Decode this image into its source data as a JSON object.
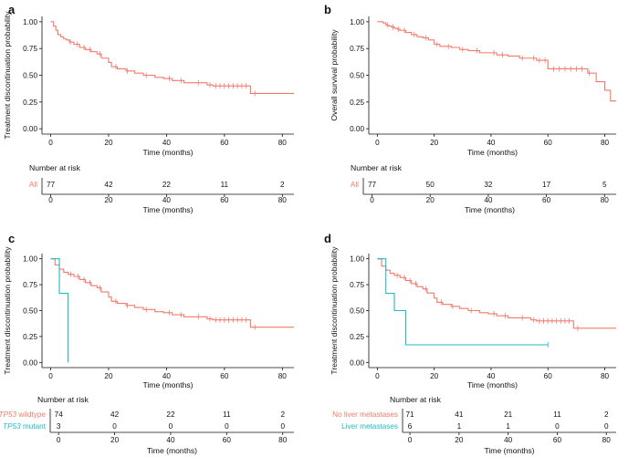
{
  "colors": {
    "primary": "#f07b6c",
    "secondary": "#1fbcc1",
    "axis": "#111111"
  },
  "xlabel": "Time (months)",
  "risk_title": "Number at risk",
  "chart_data": [
    {
      "id": "a",
      "letter": "a",
      "type": "line",
      "step": true,
      "ylabel": "Treatment discontinuation probability",
      "xlabel": "Time (months)",
      "xlim": [
        -3,
        84
      ],
      "ylim": [
        -0.05,
        1.05
      ],
      "xticks": [
        0,
        20,
        40,
        60,
        80
      ],
      "yticks": [
        "0.00",
        "0.25",
        "0.50",
        "0.75",
        "1.00"
      ],
      "grid": false,
      "series": [
        {
          "color": "#f07b6c",
          "x": [
            0,
            1,
            1.8,
            2.5,
            3.5,
            4.5,
            5.5,
            6.5,
            8,
            10,
            12,
            14,
            16,
            17.5,
            20,
            21,
            23,
            26,
            29,
            32,
            36,
            39,
            42,
            46,
            50,
            54,
            56,
            62,
            66,
            69,
            75,
            84
          ],
          "y": [
            1.0,
            0.96,
            0.92,
            0.88,
            0.86,
            0.84,
            0.83,
            0.81,
            0.79,
            0.76,
            0.74,
            0.72,
            0.7,
            0.66,
            0.62,
            0.58,
            0.56,
            0.54,
            0.52,
            0.5,
            0.48,
            0.47,
            0.45,
            0.43,
            0.43,
            0.41,
            0.4,
            0.4,
            0.4,
            0.33,
            0.33,
            0.33
          ],
          "censor_x": [
            6.8,
            9.2,
            11.5,
            13.5,
            17,
            22.5,
            26.5,
            33,
            41,
            45,
            51,
            55,
            57,
            58.5,
            60,
            61.5,
            63,
            64.5,
            66,
            67.5,
            70.5
          ]
        }
      ],
      "risk": {
        "xticks": [
          0,
          20,
          40,
          60,
          80
        ],
        "rows": [
          {
            "label": "All",
            "color": "#f07b6c",
            "values": [
              77,
              42,
              22,
              11,
              2
            ]
          }
        ]
      }
    },
    {
      "id": "b",
      "letter": "b",
      "type": "line",
      "step": true,
      "ylabel": "Overall survival probability",
      "xlabel": "Time (months)",
      "xlim": [
        -3,
        84
      ],
      "ylim": [
        -0.05,
        1.05
      ],
      "xticks": [
        0,
        20,
        40,
        60,
        80
      ],
      "yticks": [
        "0.00",
        "0.25",
        "0.50",
        "0.75",
        "1.00"
      ],
      "grid": false,
      "series": [
        {
          "color": "#f07b6c",
          "x": [
            0,
            2,
            3,
            4,
            5,
            6,
            7,
            8,
            10,
            12,
            14,
            16,
            18,
            20,
            22,
            26,
            29,
            32,
            36,
            42,
            46,
            50,
            56,
            60,
            74,
            77,
            80,
            82,
            84
          ],
          "y": [
            1.0,
            0.99,
            0.97,
            0.96,
            0.95,
            0.94,
            0.93,
            0.92,
            0.9,
            0.88,
            0.86,
            0.85,
            0.83,
            0.79,
            0.77,
            0.76,
            0.74,
            0.73,
            0.71,
            0.69,
            0.68,
            0.66,
            0.64,
            0.56,
            0.52,
            0.44,
            0.36,
            0.26,
            0.26
          ],
          "censor_x": [
            3.5,
            5.5,
            7.5,
            9.5,
            13,
            17,
            21,
            25,
            30,
            35,
            41,
            44,
            51,
            55,
            57,
            59,
            62,
            64,
            66,
            68,
            70,
            72,
            74.5
          ]
        }
      ],
      "risk": {
        "xticks": [
          0,
          20,
          40,
          60,
          80
        ],
        "rows": [
          {
            "label": "All",
            "color": "#f07b6c",
            "values": [
              77,
              50,
              32,
              17,
              5
            ]
          }
        ]
      }
    },
    {
      "id": "c",
      "letter": "c",
      "type": "line",
      "step": true,
      "ylabel": "Treatment discontinuation probability",
      "xlabel": "Time (months)",
      "xlim": [
        -3,
        84
      ],
      "ylim": [
        -0.05,
        1.05
      ],
      "xticks": [
        0,
        20,
        40,
        60,
        80
      ],
      "yticks": [
        "0.00",
        "0.25",
        "0.50",
        "0.75",
        "1.00"
      ],
      "grid": false,
      "series": [
        {
          "color": "#f07b6c",
          "x": [
            0,
            1.5,
            3,
            4.5,
            6,
            8,
            10,
            12,
            14,
            16,
            17.5,
            20,
            21,
            23,
            26,
            29,
            32,
            36,
            39,
            42,
            46,
            50,
            54,
            56,
            62,
            66,
            69,
            75,
            84
          ],
          "y": [
            1.0,
            0.94,
            0.9,
            0.87,
            0.85,
            0.83,
            0.8,
            0.77,
            0.74,
            0.72,
            0.68,
            0.63,
            0.59,
            0.57,
            0.55,
            0.53,
            0.51,
            0.49,
            0.48,
            0.46,
            0.44,
            0.44,
            0.42,
            0.41,
            0.41,
            0.41,
            0.34,
            0.34,
            0.34
          ],
          "censor_x": [
            7,
            9.5,
            11.5,
            13.5,
            17,
            22.5,
            26.5,
            33,
            41,
            45,
            51,
            55,
            57,
            58.5,
            60,
            61.5,
            63,
            64.5,
            66,
            67.5,
            70.5
          ]
        },
        {
          "color": "#1fbcc1",
          "x": [
            0,
            2,
            3,
            6,
            6
          ],
          "y": [
            1.0,
            1.0,
            0.667,
            0.333,
            0.0
          ],
          "censor_x": []
        }
      ],
      "risk": {
        "xticks": [
          0,
          20,
          40,
          60,
          80
        ],
        "rows": [
          {
            "label_italic": "TP53",
            "label": " wildtype",
            "color": "#f07b6c",
            "values": [
              74,
              42,
              22,
              11,
              2
            ]
          },
          {
            "label_italic": "TP53",
            "label": " mutant",
            "color": "#1fbcc1",
            "values": [
              3,
              0,
              0,
              0,
              0
            ]
          }
        ]
      }
    },
    {
      "id": "d",
      "letter": "d",
      "type": "line",
      "step": true,
      "ylabel": "Treatment discontinuation probability",
      "xlabel": "Time (months)",
      "xlim": [
        -3,
        84
      ],
      "ylim": [
        -0.05,
        1.05
      ],
      "xticks": [
        0,
        20,
        40,
        60,
        80
      ],
      "yticks": [
        "0.00",
        "0.25",
        "0.50",
        "0.75",
        "1.00"
      ],
      "grid": false,
      "series": [
        {
          "color": "#f07b6c",
          "x": [
            0,
            1.5,
            3,
            4.5,
            6,
            8,
            10,
            12,
            14,
            16,
            17.5,
            20,
            21,
            23,
            26,
            29,
            32,
            36,
            39,
            42,
            46,
            50,
            54,
            56,
            62,
            66,
            69,
            75,
            84
          ],
          "y": [
            1.0,
            0.93,
            0.89,
            0.86,
            0.84,
            0.82,
            0.79,
            0.76,
            0.73,
            0.71,
            0.67,
            0.62,
            0.58,
            0.56,
            0.54,
            0.52,
            0.5,
            0.48,
            0.47,
            0.45,
            0.43,
            0.43,
            0.41,
            0.4,
            0.4,
            0.4,
            0.33,
            0.33,
            0.33
          ],
          "censor_x": [
            7,
            9.5,
            11.5,
            13.5,
            17,
            22.5,
            26.5,
            33,
            41,
            45,
            51,
            55,
            57,
            58.5,
            60,
            61.5,
            63,
            64.5,
            66,
            67.5,
            70.5
          ]
        },
        {
          "color": "#1fbcc1",
          "x": [
            0,
            3,
            6,
            10,
            60
          ],
          "y": [
            1.0,
            0.667,
            0.5,
            0.17,
            0.17
          ],
          "censor_x": [
            60
          ]
        }
      ],
      "risk": {
        "xticks": [
          0,
          20,
          40,
          60,
          80
        ],
        "rows": [
          {
            "label": "No liver metastases",
            "color": "#f07b6c",
            "values": [
              71,
              41,
              21,
              11,
              2
            ]
          },
          {
            "label": "Liver metastases",
            "color": "#1fbcc1",
            "values": [
              6,
              1,
              1,
              0,
              0
            ]
          }
        ]
      }
    }
  ]
}
